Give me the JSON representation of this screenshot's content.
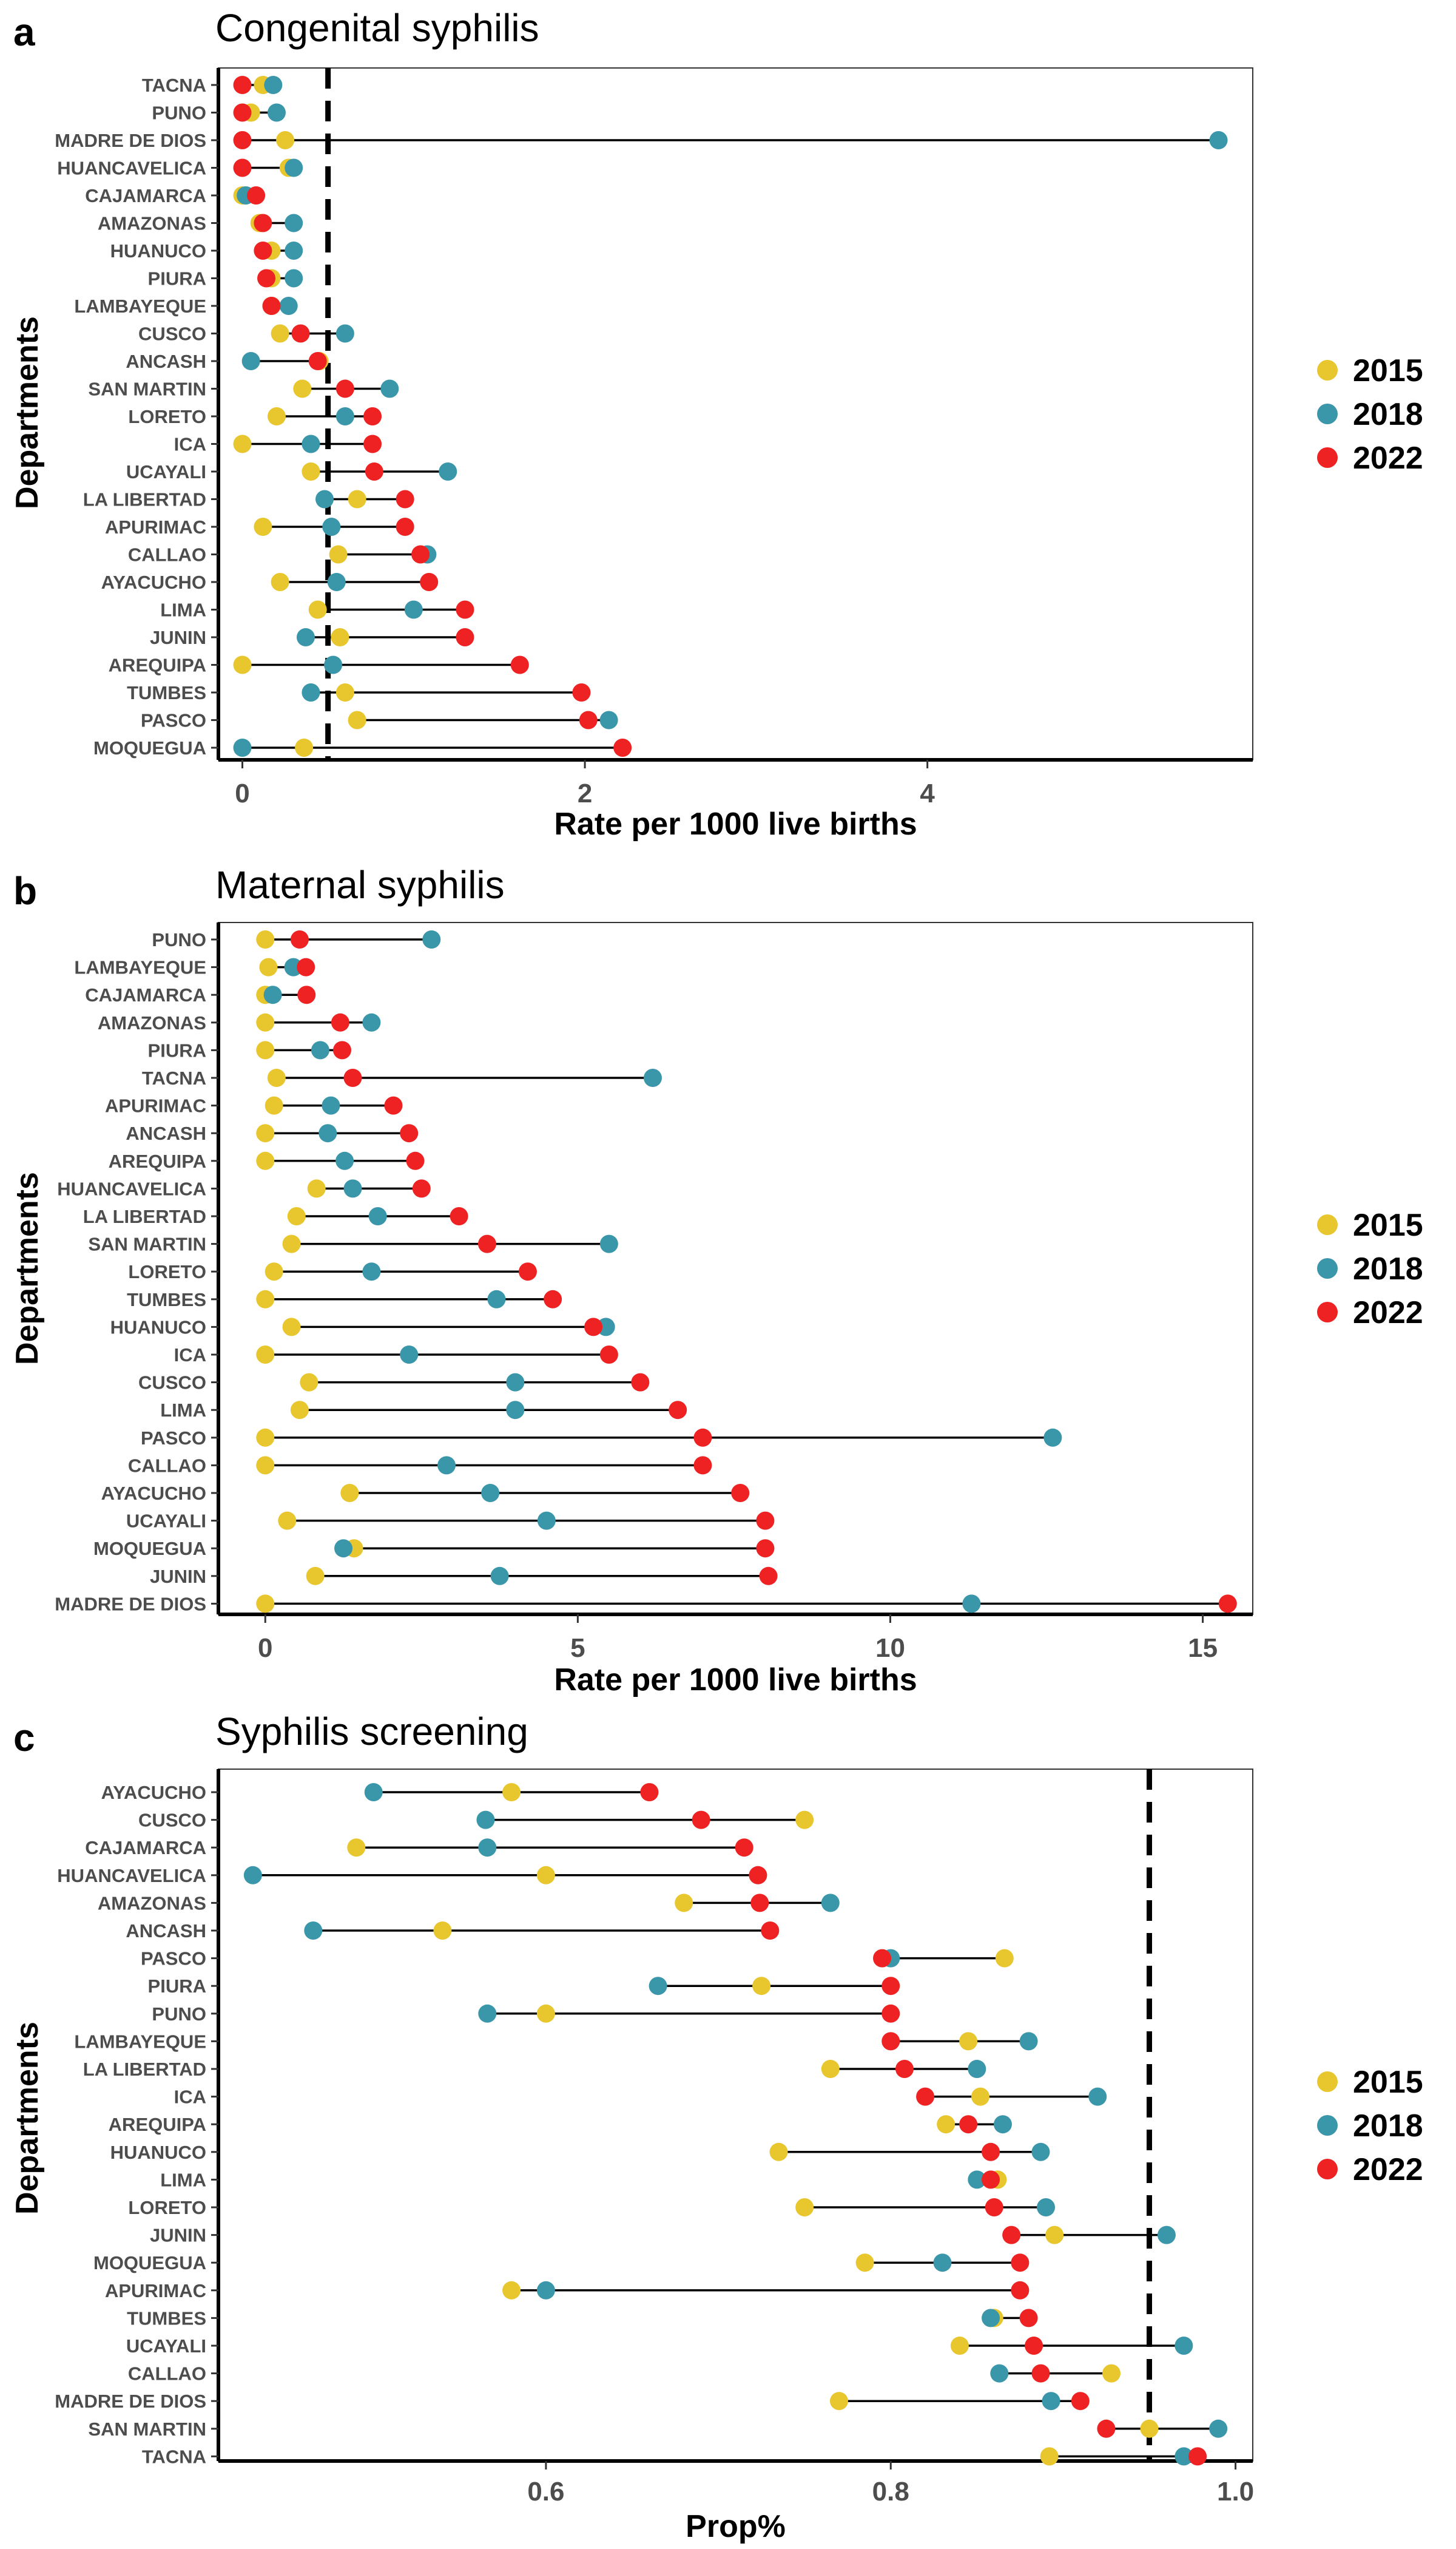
{
  "colors": {
    "2015": "#E8C62E",
    "2018": "#3A96A9",
    "2022": "#EE2222"
  },
  "legend": [
    "2015",
    "2018",
    "2022"
  ],
  "chart_data": [
    {
      "panel": "a",
      "type": "dumbbell",
      "title": "Congenital syphilis",
      "xlabel": "Rate per 1000 live births",
      "ylabel": "Departments",
      "xlim": [
        -0.14,
        5.9
      ],
      "xticks": [
        0,
        2,
        4
      ],
      "reference_line": 0.5,
      "categories": [
        "TACNA",
        "PUNO",
        "MADRE DE DIOS",
        "HUANCAVELICA",
        "CAJAMARCA",
        "AMAZONAS",
        "HUANUCO",
        "PIURA",
        "LAMBAYEQUE",
        "CUSCO",
        "ANCASH",
        "SAN MARTIN",
        "LORETO",
        "ICA",
        "UCAYALI",
        "LA LIBERTAD",
        "APURIMAC",
        "CALLAO",
        "AYACUCHO",
        "LIMA",
        "JUNIN",
        "AREQUIPA",
        "TUMBES",
        "PASCO",
        "MOQUEGUA"
      ],
      "series": [
        {
          "name": "2015",
          "values": [
            0.12,
            0.05,
            0.25,
            0.27,
            0.0,
            0.1,
            0.17,
            0.17,
            0.17,
            0.22,
            0.45,
            0.35,
            0.2,
            0.0,
            0.4,
            0.67,
            0.12,
            0.56,
            0.22,
            0.44,
            0.57,
            0.0,
            0.6,
            0.67,
            0.36
          ]
        },
        {
          "name": "2018",
          "values": [
            0.18,
            0.2,
            5.7,
            0.3,
            0.02,
            0.3,
            0.3,
            0.3,
            0.27,
            0.6,
            0.05,
            0.86,
            0.6,
            0.4,
            1.2,
            0.48,
            0.52,
            1.08,
            0.55,
            1.0,
            0.37,
            0.53,
            0.4,
            2.14,
            0.0
          ]
        },
        {
          "name": "2022",
          "values": [
            0.0,
            0.0,
            0.0,
            0.0,
            0.08,
            0.12,
            0.12,
            0.14,
            0.17,
            0.34,
            0.44,
            0.6,
            0.76,
            0.76,
            0.77,
            0.95,
            0.95,
            1.04,
            1.09,
            1.3,
            1.3,
            1.62,
            1.98,
            2.02,
            2.22
          ]
        }
      ]
    },
    {
      "panel": "b",
      "type": "dumbbell",
      "title": "Maternal syphilis",
      "xlabel": "Rate per 1000 live births",
      "ylabel": "Departments",
      "xlim": [
        -0.75,
        15.8
      ],
      "xticks": [
        0,
        5,
        10,
        15
      ],
      "reference_line": null,
      "categories": [
        "PUNO",
        "LAMBAYEQUE",
        "CAJAMARCA",
        "AMAZONAS",
        "PIURA",
        "TACNA",
        "APURIMAC",
        "ANCASH",
        "AREQUIPA",
        "HUANCAVELICA",
        "LA LIBERTAD",
        "SAN MARTIN",
        "LORETO",
        "TUMBES",
        "HUANUCO",
        "ICA",
        "CUSCO",
        "LIMA",
        "PASCO",
        "CALLAO",
        "AYACUCHO",
        "UCAYALI",
        "MOQUEGUA",
        "JUNIN",
        "MADRE DE DIOS"
      ],
      "series": [
        {
          "name": "2015",
          "values": [
            0.0,
            0.05,
            0.0,
            0.0,
            0.0,
            0.18,
            0.14,
            0.0,
            0.0,
            0.82,
            0.5,
            0.42,
            0.14,
            0.0,
            0.42,
            0.0,
            0.7,
            0.55,
            0.0,
            0.0,
            1.35,
            0.35,
            1.42,
            0.8,
            0.0
          ]
        },
        {
          "name": "2018",
          "values": [
            2.66,
            0.45,
            0.12,
            1.7,
            0.88,
            6.2,
            1.05,
            1.0,
            1.27,
            1.4,
            1.8,
            5.5,
            1.7,
            3.7,
            5.45,
            2.3,
            4.0,
            4.0,
            12.6,
            2.9,
            3.6,
            4.5,
            1.25,
            3.75,
            11.3
          ]
        },
        {
          "name": "2022",
          "values": [
            0.55,
            0.65,
            0.66,
            1.2,
            1.23,
            1.4,
            2.05,
            2.3,
            2.4,
            2.5,
            3.1,
            3.55,
            4.2,
            4.6,
            5.25,
            5.5,
            6.0,
            6.6,
            7.0,
            7.0,
            7.6,
            8.0,
            8.0,
            8.05,
            15.4
          ]
        }
      ]
    },
    {
      "panel": "c",
      "type": "dumbbell",
      "title": "Syphilis screening",
      "xlabel": "Prop%",
      "ylabel": "Departments",
      "xlim": [
        0.41,
        1.01
      ],
      "xticks": [
        0.6,
        0.8,
        1.0
      ],
      "xtick_labels": [
        "0.6",
        "0.8",
        "1.0"
      ],
      "reference_line": 0.95,
      "categories": [
        "AYACUCHO",
        "CUSCO",
        "CAJAMARCA",
        "HUANCAVELICA",
        "AMAZONAS",
        "ANCASH",
        "PASCO",
        "PIURA",
        "PUNO",
        "LAMBAYEQUE",
        "LA LIBERTAD",
        "ICA",
        "AREQUIPA",
        "HUANUCO",
        "LIMA",
        "LORETO",
        "JUNIN",
        "MOQUEGUA",
        "APURIMAC",
        "TUMBES",
        "UCAYALI",
        "CALLAO",
        "MADRE DE DIOS",
        "SAN MARTIN",
        "TACNA"
      ],
      "series": [
        {
          "name": "2015",
          "values": [
            0.58,
            0.75,
            0.49,
            0.6,
            0.68,
            0.54,
            0.866,
            0.725,
            0.6,
            0.845,
            0.765,
            0.852,
            0.832,
            0.735,
            0.862,
            0.75,
            0.895,
            0.785,
            0.58,
            0.86,
            0.84,
            0.928,
            0.77,
            0.95,
            0.892
          ]
        },
        {
          "name": "2018",
          "values": [
            0.5,
            0.565,
            0.566,
            0.43,
            0.765,
            0.465,
            0.8,
            0.665,
            0.566,
            0.88,
            0.85,
            0.92,
            0.865,
            0.887,
            0.85,
            0.89,
            0.96,
            0.83,
            0.6,
            0.858,
            0.97,
            0.863,
            0.893,
            0.99,
            0.97
          ]
        },
        {
          "name": "2022",
          "values": [
            0.66,
            0.69,
            0.715,
            0.723,
            0.724,
            0.73,
            0.795,
            0.8,
            0.8,
            0.8,
            0.808,
            0.82,
            0.845,
            0.858,
            0.858,
            0.86,
            0.87,
            0.875,
            0.875,
            0.88,
            0.883,
            0.887,
            0.91,
            0.925,
            0.978
          ]
        }
      ]
    }
  ]
}
